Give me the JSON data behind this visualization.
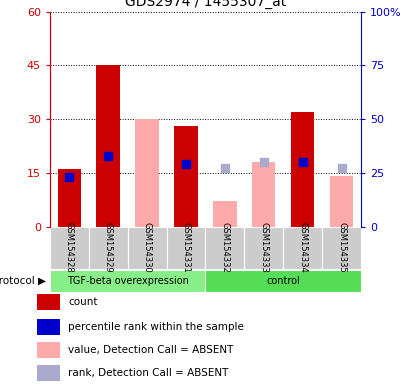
{
  "title": "GDS2974 / 1455307_at",
  "samples": [
    "GSM154328",
    "GSM154329",
    "GSM154330",
    "GSM154331",
    "GSM154332",
    "GSM154333",
    "GSM154334",
    "GSM154335"
  ],
  "left_ylim": [
    0,
    60
  ],
  "right_ylim": [
    0,
    100
  ],
  "left_yticks": [
    0,
    15,
    30,
    45,
    60
  ],
  "right_yticks": [
    0,
    25,
    50,
    75,
    100
  ],
  "left_yticklabels": [
    "0",
    "15",
    "30",
    "45",
    "60"
  ],
  "right_yticklabels": [
    "0",
    "25",
    "50",
    "75",
    "100%"
  ],
  "count_bars": [
    16,
    45,
    null,
    28,
    null,
    null,
    32,
    null
  ],
  "count_bar_color": "#cc0000",
  "rank_dots": [
    23,
    33,
    null,
    29,
    null,
    null,
    30,
    null
  ],
  "rank_dot_color": "#0000cc",
  "absent_value_bars": [
    null,
    null,
    30,
    null,
    7,
    18,
    null,
    14
  ],
  "absent_value_bar_color": "#ffaaaa",
  "absent_rank_dots": [
    null,
    null,
    null,
    null,
    27,
    30,
    null,
    27
  ],
  "absent_rank_dot_color": "#aaaacc",
  "protocol_groups": [
    {
      "label": "TGF-beta overexpression",
      "start": 0,
      "end": 3,
      "color": "#88ee88"
    },
    {
      "label": "control",
      "start": 4,
      "end": 7,
      "color": "#55dd55"
    }
  ],
  "legend_items": [
    {
      "label": "count",
      "color": "#cc0000"
    },
    {
      "label": "percentile rank within the sample",
      "color": "#0000cc"
    },
    {
      "label": "value, Detection Call = ABSENT",
      "color": "#ffaaaa"
    },
    {
      "label": "rank, Detection Call = ABSENT",
      "color": "#aaaacc"
    }
  ],
  "bar_width": 0.6,
  "dot_size": 40,
  "left_axis_color": "#cc0000",
  "right_axis_color": "#0000cc",
  "sample_box_color": "#cccccc",
  "protocol_label": "protocol"
}
